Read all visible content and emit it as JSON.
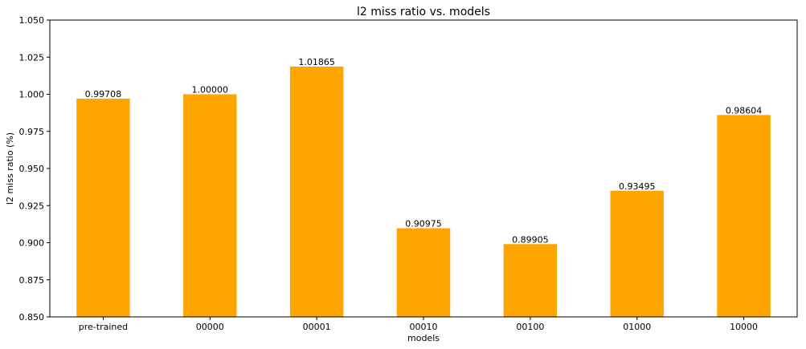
{
  "chart_data": {
    "type": "bar",
    "title": "l2 miss ratio vs. models",
    "xlabel": "models",
    "ylabel": "l2 miss ratio (%)",
    "categories": [
      "pre-trained",
      "00000",
      "00001",
      "00010",
      "00100",
      "01000",
      "10000"
    ],
    "values": [
      0.99708,
      1.0,
      1.01865,
      0.90975,
      0.89905,
      0.93495,
      0.98604
    ],
    "value_labels": [
      "0.99708",
      "1.00000",
      "1.01865",
      "0.90975",
      "0.89905",
      "0.93495",
      "0.98604"
    ],
    "ylim": [
      0.85,
      1.05
    ],
    "yticks": [
      0.85,
      0.875,
      0.9,
      0.925,
      0.95,
      0.975,
      1.0,
      1.025,
      1.05
    ],
    "ytick_labels": [
      "0.850",
      "0.875",
      "0.900",
      "0.925",
      "0.950",
      "0.975",
      "1.000",
      "1.025",
      "1.050"
    ],
    "bar_color": "#ffa500",
    "grid": false,
    "legend": "none"
  }
}
